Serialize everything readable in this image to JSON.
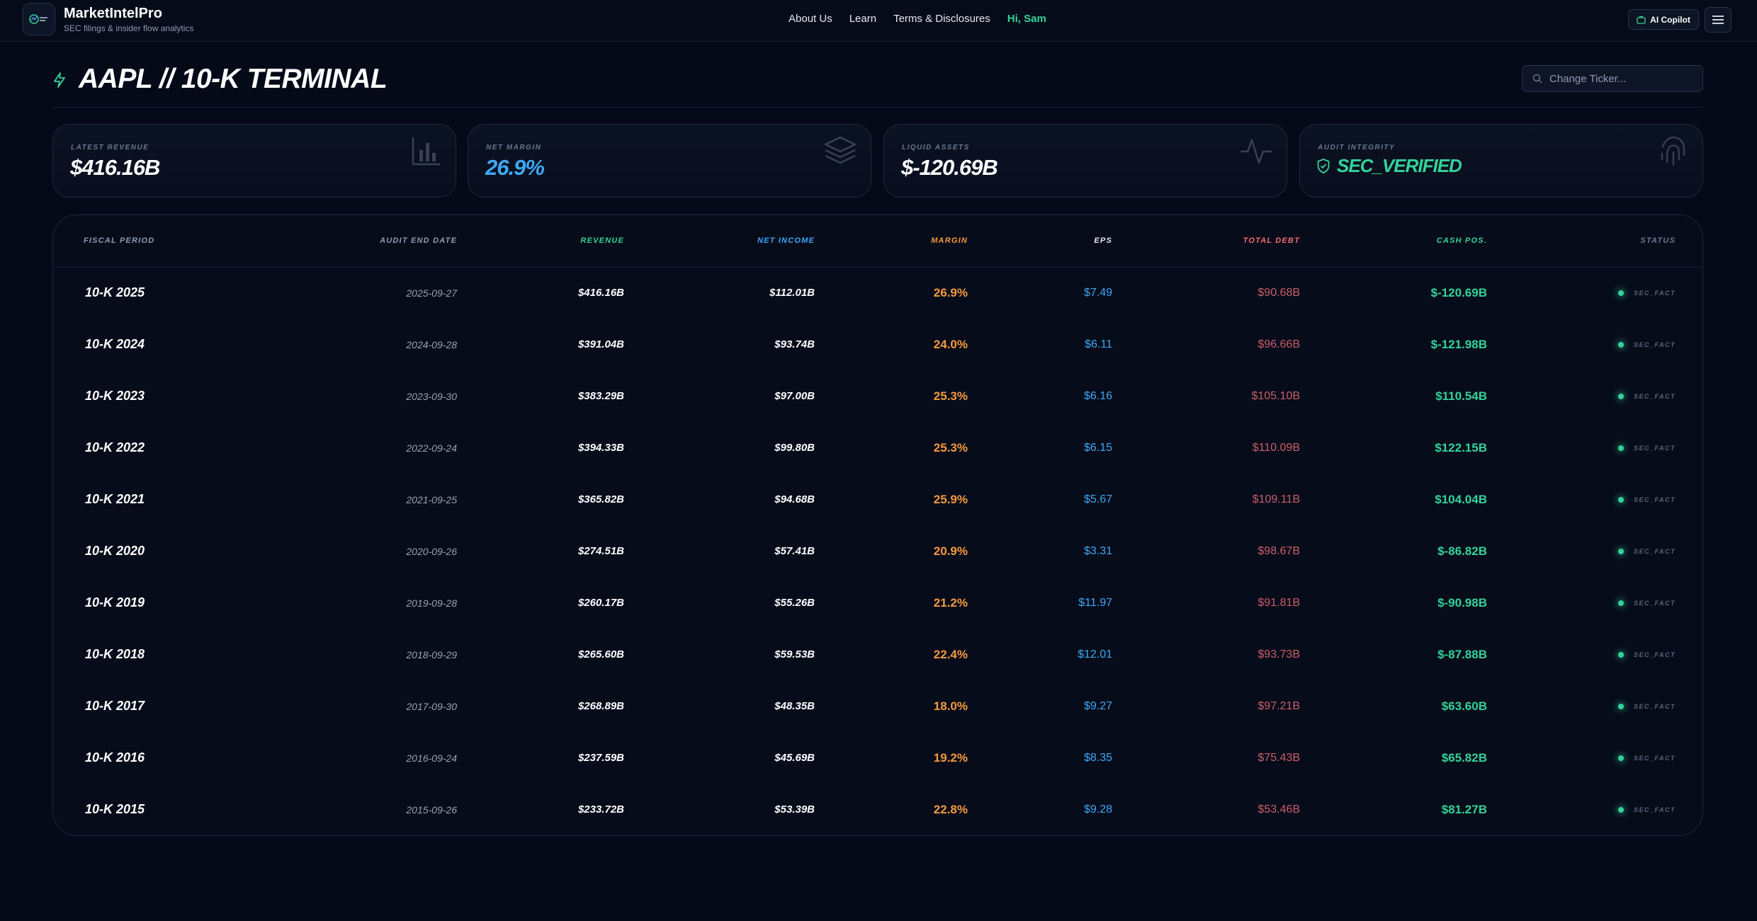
{
  "nav": {
    "brand_name": "MarketIntelPro",
    "brand_tagline": "SEC filings & insider flow analytics",
    "links": [
      "About Us",
      "Learn",
      "Terms & Disclosures"
    ],
    "greeting": "Hi, Sam",
    "copilot_label": "AI Copilot",
    "copilot_icon": "briefcase-icon",
    "menu_icon": "hamburger-menu-icon"
  },
  "header": {
    "title": "AAPL // 10-K TERMINAL",
    "title_icon": "lightning-bolt-icon",
    "search_placeholder": "Change Ticker..."
  },
  "cards": [
    {
      "label": "LATEST REVENUE",
      "value": "$416.16B",
      "color": "#ffffff",
      "icon": "bar-chart-icon"
    },
    {
      "label": "NET MARGIN",
      "value": "26.9%",
      "color": "#3ea8f5",
      "icon": "layers-icon"
    },
    {
      "label": "LIQUID ASSETS",
      "value": "$-120.69B",
      "color": "#ffffff",
      "icon": "activity-pulse-icon"
    },
    {
      "label": "AUDIT INTEGRITY",
      "value": "SEC_VERIFIED",
      "color": "#34d399",
      "icon": "fingerprint-icon"
    }
  ],
  "table": {
    "columns": [
      "FISCAL PERIOD",
      "AUDIT END DATE",
      "REVENUE",
      "NET INCOME",
      "MARGIN",
      "EPS",
      "TOTAL DEBT",
      "CASH POS.",
      "STATUS"
    ],
    "rows": [
      {
        "period": "10-K 2025",
        "date": "2025-09-27",
        "revenue": "$416.16B",
        "net_income": "$112.01B",
        "margin": "26.9%",
        "eps": "$7.49",
        "debt": "$90.68B",
        "cash": "$-120.69B",
        "status": "SEC_FACT"
      },
      {
        "period": "10-K 2024",
        "date": "2024-09-28",
        "revenue": "$391.04B",
        "net_income": "$93.74B",
        "margin": "24.0%",
        "eps": "$6.11",
        "debt": "$96.66B",
        "cash": "$-121.98B",
        "status": "SEC_FACT"
      },
      {
        "period": "10-K 2023",
        "date": "2023-09-30",
        "revenue": "$383.29B",
        "net_income": "$97.00B",
        "margin": "25.3%",
        "eps": "$6.16",
        "debt": "$105.10B",
        "cash": "$110.54B",
        "status": "SEC_FACT"
      },
      {
        "period": "10-K 2022",
        "date": "2022-09-24",
        "revenue": "$394.33B",
        "net_income": "$99.80B",
        "margin": "25.3%",
        "eps": "$6.15",
        "debt": "$110.09B",
        "cash": "$122.15B",
        "status": "SEC_FACT"
      },
      {
        "period": "10-K 2021",
        "date": "2021-09-25",
        "revenue": "$365.82B",
        "net_income": "$94.68B",
        "margin": "25.9%",
        "eps": "$5.67",
        "debt": "$109.11B",
        "cash": "$104.04B",
        "status": "SEC_FACT"
      },
      {
        "period": "10-K 2020",
        "date": "2020-09-26",
        "revenue": "$274.51B",
        "net_income": "$57.41B",
        "margin": "20.9%",
        "eps": "$3.31",
        "debt": "$98.67B",
        "cash": "$-86.82B",
        "status": "SEC_FACT"
      },
      {
        "period": "10-K 2019",
        "date": "2019-09-28",
        "revenue": "$260.17B",
        "net_income": "$55.26B",
        "margin": "21.2%",
        "eps": "$11.97",
        "debt": "$91.81B",
        "cash": "$-90.98B",
        "status": "SEC_FACT"
      },
      {
        "period": "10-K 2018",
        "date": "2018-09-29",
        "revenue": "$265.60B",
        "net_income": "$59.53B",
        "margin": "22.4%",
        "eps": "$12.01",
        "debt": "$93.73B",
        "cash": "$-87.88B",
        "status": "SEC_FACT"
      },
      {
        "period": "10-K 2017",
        "date": "2017-09-30",
        "revenue": "$268.89B",
        "net_income": "$48.35B",
        "margin": "18.0%",
        "eps": "$9.27",
        "debt": "$97.21B",
        "cash": "$63.60B",
        "status": "SEC_FACT"
      },
      {
        "period": "10-K 2016",
        "date": "2016-09-24",
        "revenue": "$237.59B",
        "net_income": "$45.69B",
        "margin": "19.2%",
        "eps": "$8.35",
        "debt": "$75.43B",
        "cash": "$65.82B",
        "status": "SEC_FACT"
      },
      {
        "period": "10-K 2015",
        "date": "2015-09-26",
        "revenue": "$233.72B",
        "net_income": "$53.39B",
        "margin": "22.8%",
        "eps": "$9.28",
        "debt": "$53.46B",
        "cash": "$81.27B",
        "status": "SEC_FACT"
      }
    ]
  },
  "colors": {
    "background": "#050a19",
    "accent_green": "#34d399",
    "accent_blue": "#3ea8f5",
    "accent_orange": "#f59a3c",
    "accent_red": "#f06a72"
  }
}
